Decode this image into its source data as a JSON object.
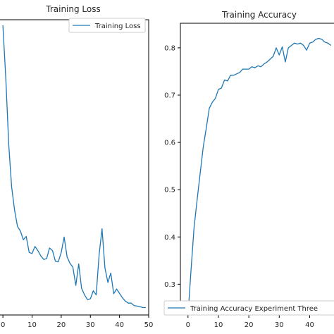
{
  "colors": {
    "series": "#1f77b4",
    "axis": "#000000",
    "background": "#ffffff"
  },
  "chart_data": [
    {
      "type": "line",
      "title": "Training Loss",
      "xlabel": "",
      "ylabel": "",
      "x_ticks": [
        "0",
        "10",
        "20",
        "30",
        "40",
        "50"
      ],
      "xlim": [
        -1,
        50
      ],
      "ylim": [
        0.0,
        1.0
      ],
      "legend": {
        "position": "top-right",
        "entries": [
          "Training Loss"
        ]
      },
      "grid": false,
      "series": [
        {
          "name": "Training Loss",
          "x": [
            0,
            1,
            2,
            3,
            4,
            5,
            6,
            7,
            8,
            9,
            10,
            11,
            12,
            13,
            14,
            15,
            16,
            17,
            18,
            19,
            20,
            21,
            22,
            23,
            24,
            25,
            26,
            27,
            28,
            29,
            30,
            31,
            32,
            33,
            34,
            35,
            36,
            37,
            38,
            39,
            40,
            41,
            42,
            43,
            44,
            45,
            46,
            47,
            48,
            49
          ],
          "values": [
            0.981,
            0.798,
            0.577,
            0.434,
            0.355,
            0.3,
            0.284,
            0.255,
            0.266,
            0.212,
            0.208,
            0.232,
            0.218,
            0.2,
            0.188,
            0.191,
            0.227,
            0.218,
            0.182,
            0.18,
            0.212,
            0.264,
            0.197,
            0.175,
            0.162,
            0.1,
            0.173,
            0.09,
            0.068,
            0.052,
            0.055,
            0.082,
            0.068,
            0.205,
            0.292,
            0.16,
            0.11,
            0.142,
            0.072,
            0.088,
            0.073,
            0.058,
            0.047,
            0.04,
            0.04,
            0.032,
            0.03,
            0.028,
            0.025,
            0.025
          ]
        }
      ]
    },
    {
      "type": "line",
      "title": "Training Accuracy",
      "xlabel": "",
      "ylabel": "",
      "x_ticks": [
        "0",
        "10",
        "20",
        "30",
        "40"
      ],
      "y_ticks": [
        "0.3",
        "0.4",
        "0.5",
        "0.6",
        "0.7",
        "0.8"
      ],
      "xlim": [
        -2.5,
        48
      ],
      "ylim": [
        0.235,
        0.852
      ],
      "legend": {
        "position": "bottom-right",
        "entries": [
          "Training Accuracy Experiment Three"
        ]
      },
      "grid": false,
      "series": [
        {
          "name": "Training Accuracy Experiment Three",
          "x": [
            0,
            1,
            2,
            3,
            4,
            5,
            6,
            7,
            8,
            9,
            10,
            11,
            12,
            13,
            14,
            15,
            16,
            17,
            18,
            19,
            20,
            21,
            22,
            23,
            24,
            25,
            26,
            27,
            28,
            29,
            30,
            31,
            32,
            33,
            34,
            35,
            36,
            37,
            38,
            39,
            40,
            41,
            42,
            43,
            44,
            45,
            46,
            47
          ],
          "values": [
            0.235,
            0.33,
            0.42,
            0.478,
            0.535,
            0.59,
            0.63,
            0.672,
            0.685,
            0.693,
            0.712,
            0.715,
            0.732,
            0.73,
            0.742,
            0.742,
            0.745,
            0.748,
            0.755,
            0.755,
            0.755,
            0.76,
            0.758,
            0.762,
            0.76,
            0.766,
            0.77,
            0.776,
            0.782,
            0.8,
            0.785,
            0.802,
            0.77,
            0.8,
            0.805,
            0.81,
            0.808,
            0.81,
            0.805,
            0.795,
            0.81,
            0.812,
            0.818,
            0.82,
            0.818,
            0.812,
            0.81,
            0.805
          ]
        }
      ]
    }
  ]
}
